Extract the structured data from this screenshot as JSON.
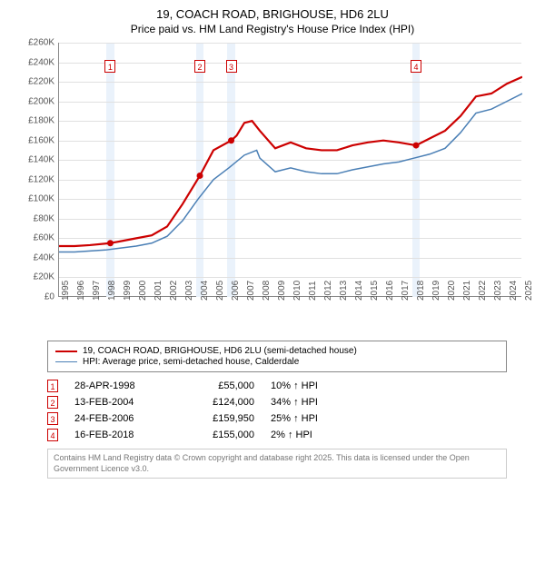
{
  "title": "19, COACH ROAD, BRIGHOUSE, HD6 2LU",
  "subtitle": "Price paid vs. HM Land Registry's House Price Index (HPI)",
  "chart": {
    "type": "line",
    "background_color": "#ffffff",
    "grid_color": "#e0e0e0",
    "ylim": [
      0,
      260000
    ],
    "ytick_step": 20000,
    "yticks": [
      "£0",
      "£20K",
      "£40K",
      "£60K",
      "£80K",
      "£100K",
      "£120K",
      "£140K",
      "£160K",
      "£180K",
      "£200K",
      "£220K",
      "£240K",
      "£260K"
    ],
    "xlim": [
      1995,
      2025
    ],
    "xticks": [
      1995,
      1996,
      1997,
      1998,
      1999,
      2000,
      2001,
      2002,
      2003,
      2004,
      2005,
      2006,
      2007,
      2008,
      2009,
      2010,
      2011,
      2012,
      2013,
      2014,
      2015,
      2016,
      2017,
      2018,
      2019,
      2020,
      2021,
      2022,
      2023,
      2024,
      2025
    ],
    "highlights": [
      {
        "x": 1998.32,
        "w": 0.5
      },
      {
        "x": 2004.12,
        "w": 0.5
      },
      {
        "x": 2006.15,
        "w": 0.5
      },
      {
        "x": 2018.12,
        "w": 0.5
      }
    ],
    "markers": [
      {
        "n": "1",
        "x": 1998.32,
        "y": 236000
      },
      {
        "n": "2",
        "x": 2004.12,
        "y": 236000
      },
      {
        "n": "3",
        "x": 2006.15,
        "y": 236000
      },
      {
        "n": "4",
        "x": 2018.12,
        "y": 236000
      }
    ],
    "series": [
      {
        "name": "19, COACH ROAD, BRIGHOUSE, HD6 2LU (semi-detached house)",
        "color": "#cc0000",
        "width": 2.2,
        "points": [
          [
            1995,
            52000
          ],
          [
            1996,
            52000
          ],
          [
            1997,
            53000
          ],
          [
            1998.32,
            55000
          ],
          [
            1999,
            57000
          ],
          [
            2000,
            60000
          ],
          [
            2001,
            63000
          ],
          [
            2002,
            72000
          ],
          [
            2003,
            95000
          ],
          [
            2004.12,
            124000
          ],
          [
            2005,
            150000
          ],
          [
            2006.15,
            159950
          ],
          [
            2006.5,
            165000
          ],
          [
            2007,
            178000
          ],
          [
            2007.5,
            180000
          ],
          [
            2008,
            170000
          ],
          [
            2009,
            152000
          ],
          [
            2010,
            158000
          ],
          [
            2011,
            152000
          ],
          [
            2012,
            150000
          ],
          [
            2013,
            150000
          ],
          [
            2014,
            155000
          ],
          [
            2015,
            158000
          ],
          [
            2016,
            160000
          ],
          [
            2017,
            158000
          ],
          [
            2018.12,
            155000
          ],
          [
            2019,
            162000
          ],
          [
            2020,
            170000
          ],
          [
            2021,
            185000
          ],
          [
            2022,
            205000
          ],
          [
            2023,
            208000
          ],
          [
            2024,
            218000
          ],
          [
            2025,
            225000
          ]
        ],
        "dots": [
          [
            1998.32,
            55000
          ],
          [
            2004.12,
            124000
          ],
          [
            2006.15,
            159950
          ],
          [
            2018.12,
            155000
          ]
        ]
      },
      {
        "name": "HPI: Average price, semi-detached house, Calderdale",
        "color": "#4a7fb5",
        "width": 1.5,
        "points": [
          [
            1995,
            46000
          ],
          [
            1996,
            46000
          ],
          [
            1997,
            47000
          ],
          [
            1998,
            48000
          ],
          [
            1999,
            50000
          ],
          [
            2000,
            52000
          ],
          [
            2001,
            55000
          ],
          [
            2002,
            62000
          ],
          [
            2003,
            78000
          ],
          [
            2004,
            100000
          ],
          [
            2005,
            120000
          ],
          [
            2006,
            132000
          ],
          [
            2007,
            145000
          ],
          [
            2007.8,
            150000
          ],
          [
            2008,
            142000
          ],
          [
            2009,
            128000
          ],
          [
            2010,
            132000
          ],
          [
            2011,
            128000
          ],
          [
            2012,
            126000
          ],
          [
            2013,
            126000
          ],
          [
            2014,
            130000
          ],
          [
            2015,
            133000
          ],
          [
            2016,
            136000
          ],
          [
            2017,
            138000
          ],
          [
            2018,
            142000
          ],
          [
            2019,
            146000
          ],
          [
            2020,
            152000
          ],
          [
            2021,
            168000
          ],
          [
            2022,
            188000
          ],
          [
            2023,
            192000
          ],
          [
            2024,
            200000
          ],
          [
            2025,
            208000
          ]
        ]
      }
    ]
  },
  "legend": [
    {
      "color": "#cc0000",
      "width": 2.2,
      "label": "19, COACH ROAD, BRIGHOUSE, HD6 2LU (semi-detached house)"
    },
    {
      "color": "#4a7fb5",
      "width": 1.5,
      "label": "HPI: Average price, semi-detached house, Calderdale"
    }
  ],
  "transactions": [
    {
      "n": "1",
      "date": "28-APR-1998",
      "price": "£55,000",
      "pct": "10% ↑ HPI"
    },
    {
      "n": "2",
      "date": "13-FEB-2004",
      "price": "£124,000",
      "pct": "34% ↑ HPI"
    },
    {
      "n": "3",
      "date": "24-FEB-2006",
      "price": "£159,950",
      "pct": "25% ↑ HPI"
    },
    {
      "n": "4",
      "date": "16-FEB-2018",
      "price": "£155,000",
      "pct": "2% ↑ HPI"
    }
  ],
  "footer": "Contains HM Land Registry data © Crown copyright and database right 2025. This data is licensed under the Open Government Licence v3.0."
}
